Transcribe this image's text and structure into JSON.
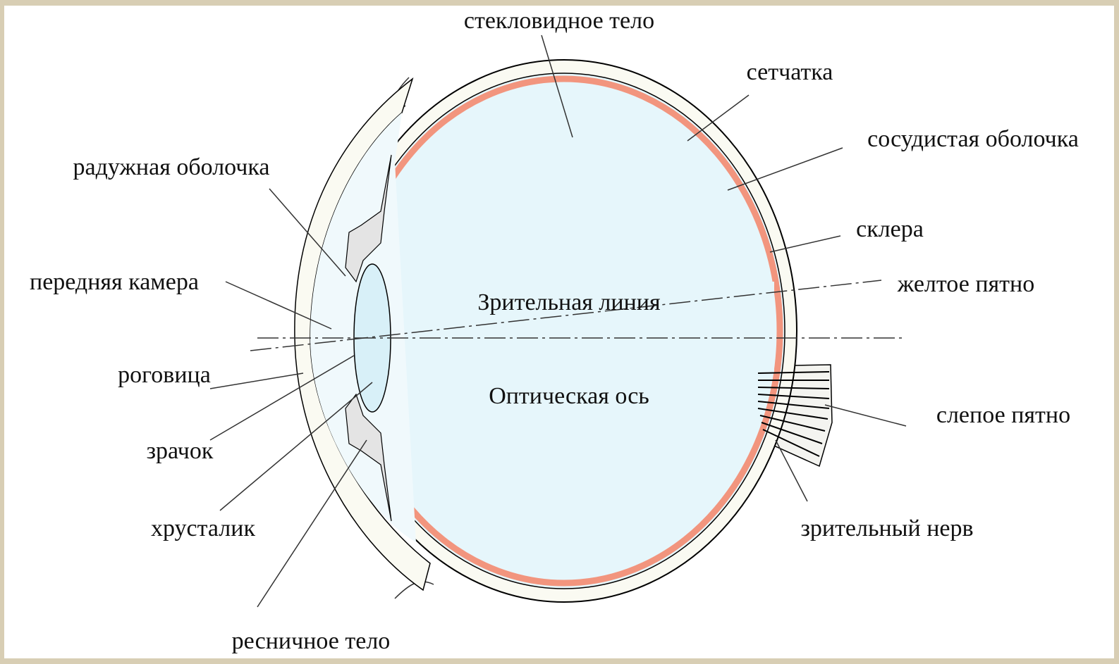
{
  "labels": [
    "стекловидное тело",
    "сетчатка",
    "сосудистая оболочка",
    "склера",
    "желтое пятно",
    "радужная оболочка",
    "передняя камера",
    "Зрительная линия",
    "роговица",
    "Оптическая ось",
    "слепое пятно",
    "зрачок",
    "хрусталик",
    "зрительный нерв",
    "ресничное тело"
  ]
}
